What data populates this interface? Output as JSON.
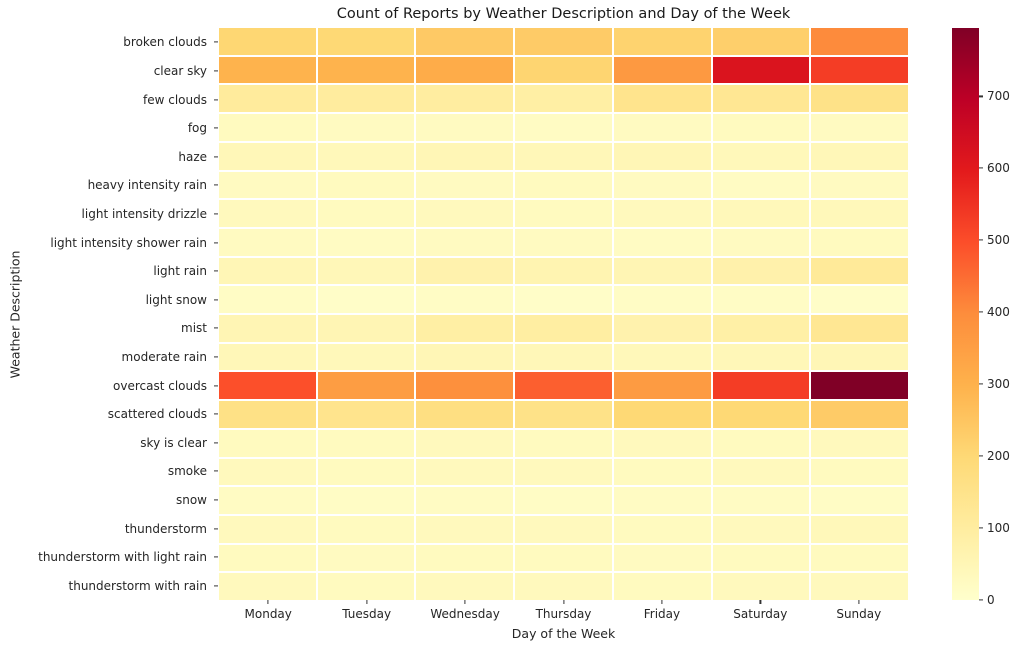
{
  "title": "Count of Reports by Weather Description and Day of the Week",
  "chart_data": {
    "type": "heatmap",
    "title": "Count of Reports by Weather Description and Day of the Week",
    "xlabel": "Day of the Week",
    "ylabel": "Weather Description",
    "x_categories": [
      "Monday",
      "Tuesday",
      "Wednesday",
      "Thursday",
      "Friday",
      "Saturday",
      "Sunday"
    ],
    "y_categories": [
      "broken clouds",
      "clear sky",
      "few clouds",
      "fog",
      "haze",
      "heavy intensity rain",
      "light intensity drizzle",
      "light intensity shower rain",
      "light rain",
      "light snow",
      "mist",
      "moderate rain",
      "overcast clouds",
      "scattered clouds",
      "sky is clear",
      "smoke",
      "snow",
      "thunderstorm",
      "thunderstorm with light rain",
      "thunderstorm with rain"
    ],
    "series": [
      {
        "name": "broken clouds",
        "values": [
          205,
          200,
          240,
          235,
          215,
          225,
          400
        ]
      },
      {
        "name": "clear sky",
        "values": [
          295,
          295,
          315,
          210,
          365,
          620,
          530
        ]
      },
      {
        "name": "few clouds",
        "values": [
          110,
          105,
          100,
          90,
          145,
          130,
          155
        ]
      },
      {
        "name": "fog",
        "values": [
          30,
          25,
          25,
          20,
          25,
          30,
          25
        ]
      },
      {
        "name": "haze",
        "values": [
          45,
          40,
          50,
          45,
          50,
          40,
          45
        ]
      },
      {
        "name": "heavy intensity rain",
        "values": [
          25,
          30,
          25,
          30,
          25,
          20,
          25
        ]
      },
      {
        "name": "light intensity drizzle",
        "values": [
          35,
          30,
          35,
          30,
          35,
          40,
          40
        ]
      },
      {
        "name": "light intensity shower rain",
        "values": [
          25,
          20,
          25,
          25,
          20,
          25,
          30
        ]
      },
      {
        "name": "light rain",
        "values": [
          50,
          45,
          70,
          60,
          55,
          75,
          115
        ]
      },
      {
        "name": "light snow",
        "values": [
          15,
          10,
          15,
          10,
          15,
          15,
          10
        ]
      },
      {
        "name": "mist",
        "values": [
          55,
          55,
          90,
          95,
          70,
          85,
          130
        ]
      },
      {
        "name": "moderate rain",
        "values": [
          45,
          40,
          50,
          45,
          40,
          45,
          50
        ]
      },
      {
        "name": "overcast clouds",
        "values": [
          495,
          355,
          390,
          470,
          360,
          530,
          795
        ]
      },
      {
        "name": "scattered clouds",
        "values": [
          160,
          145,
          170,
          155,
          200,
          200,
          235
        ]
      },
      {
        "name": "sky is clear",
        "values": [
          30,
          30,
          35,
          30,
          35,
          30,
          35
        ]
      },
      {
        "name": "smoke",
        "values": [
          35,
          30,
          35,
          35,
          30,
          35,
          30
        ]
      },
      {
        "name": "snow",
        "values": [
          20,
          15,
          20,
          15,
          20,
          20,
          15
        ]
      },
      {
        "name": "thunderstorm",
        "values": [
          35,
          30,
          35,
          35,
          30,
          35,
          40
        ]
      },
      {
        "name": "thunderstorm with light rain",
        "values": [
          30,
          25,
          30,
          30,
          25,
          30,
          30
        ]
      },
      {
        "name": "thunderstorm with rain",
        "values": [
          35,
          30,
          35,
          35,
          30,
          35,
          35
        ]
      }
    ],
    "vmin": 0,
    "vmax": 795,
    "colormap": "YlOrRd",
    "colormap_anchors": [
      "#ffffcc",
      "#ffeda0",
      "#fed976",
      "#feb24c",
      "#fd8d3c",
      "#fc4e2a",
      "#e31a1c",
      "#bd0026",
      "#800026"
    ],
    "colorbar_ticks": [
      0,
      100,
      200,
      300,
      400,
      500,
      600,
      700
    ],
    "legend_position": "right-colorbar",
    "grid": "white-cell-borders"
  }
}
